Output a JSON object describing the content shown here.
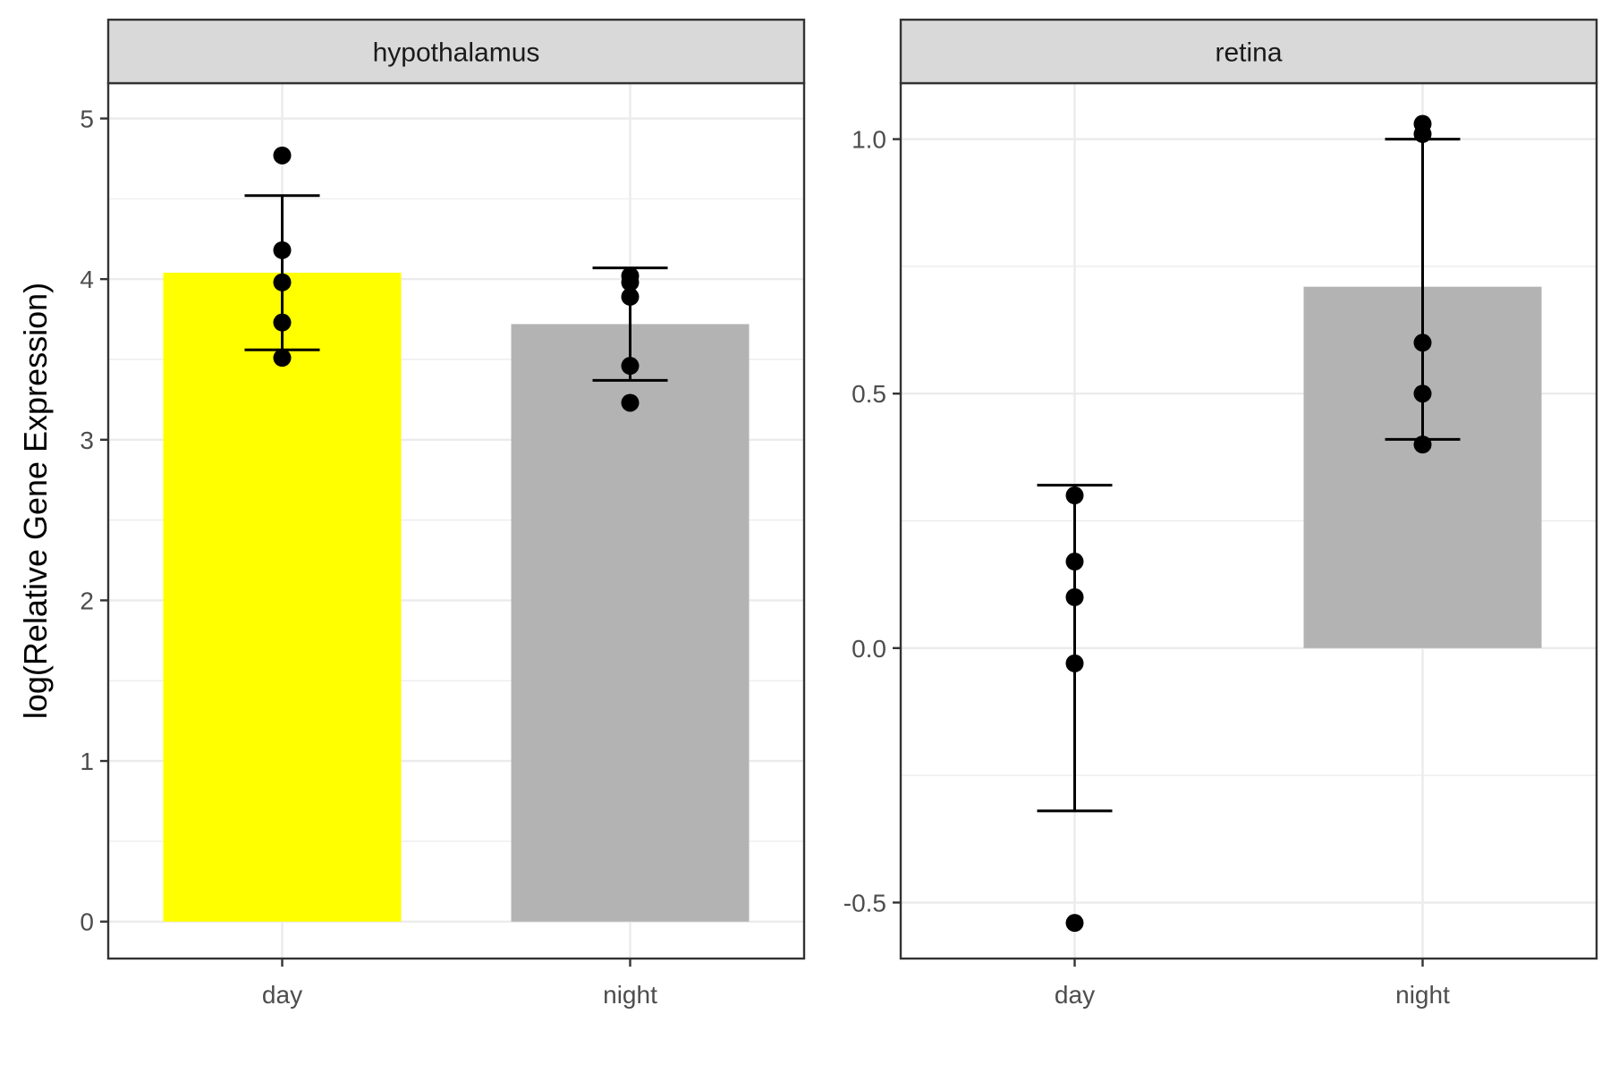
{
  "chart_data": {
    "type": "bar",
    "ylabel": "log(Relative Gene Expression)",
    "categories": [
      "day",
      "night"
    ],
    "colors": {
      "day": "#ffff00",
      "night": "#b3b3b3",
      "point": "#000000",
      "strip_bg": "#d9d9d9",
      "grid": "#ebebeb"
    },
    "facets": [
      {
        "name": "hypothalamus",
        "ylim": [
          -0.23,
          5.22
        ],
        "yticks": [
          0,
          1,
          2,
          3,
          4,
          5
        ],
        "ytick_labels": [
          "0",
          "1",
          "2",
          "3",
          "4",
          "5"
        ],
        "bars": [
          {
            "category": "day",
            "value": 4.04,
            "err_low": 3.56,
            "err_high": 4.52,
            "fill": "yellow"
          },
          {
            "category": "night",
            "value": 3.72,
            "err_low": 3.37,
            "err_high": 4.07,
            "fill": "grey"
          }
        ],
        "points": [
          {
            "category": "day",
            "values": [
              4.77,
              4.18,
              3.98,
              3.73,
              3.51
            ]
          },
          {
            "category": "night",
            "values": [
              4.02,
              3.98,
              3.89,
              3.46,
              3.23
            ]
          }
        ]
      },
      {
        "name": "retina",
        "ylim": [
          -0.61,
          1.11
        ],
        "yticks": [
          -0.5,
          0,
          0.5,
          1
        ],
        "ytick_labels": [
          "-0.5",
          "0.0",
          "0.5",
          "1.0"
        ],
        "bars": [
          {
            "category": "day",
            "value": null,
            "err_low": -0.32,
            "err_high": 0.32,
            "fill": "yellow"
          },
          {
            "category": "night",
            "value": 0.71,
            "err_low": 0.41,
            "err_high": 1.0,
            "fill": "grey"
          }
        ],
        "points": [
          {
            "category": "day",
            "values": [
              0.3,
              0.17,
              0.1,
              -0.03,
              -0.54
            ]
          },
          {
            "category": "night",
            "values": [
              1.03,
              1.01,
              0.6,
              0.5,
              0.4
            ]
          }
        ]
      }
    ]
  }
}
